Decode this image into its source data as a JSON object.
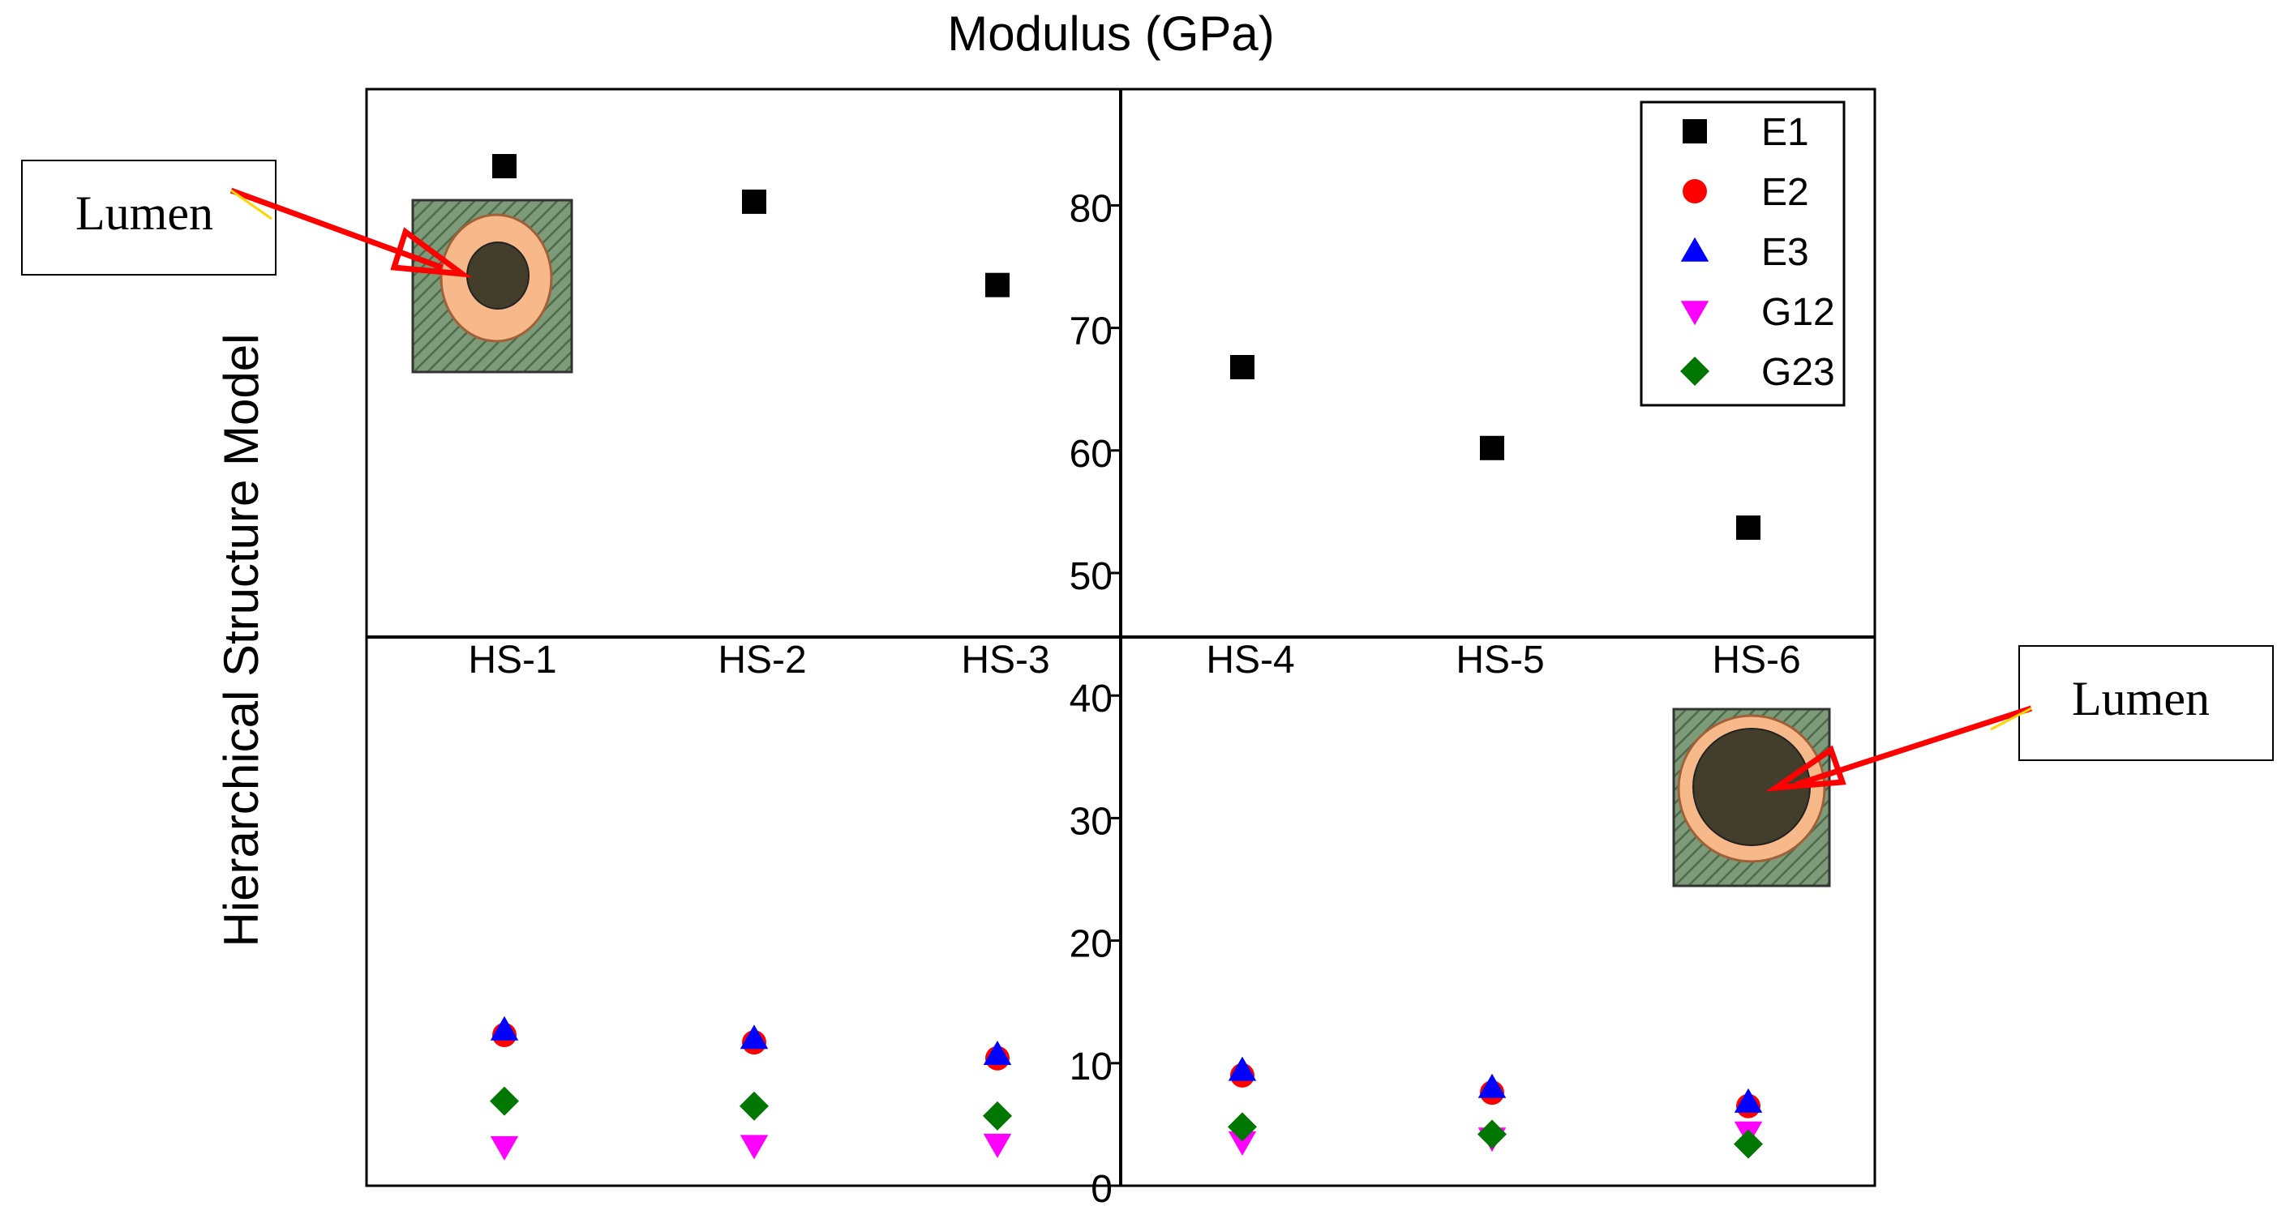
{
  "chart_data": {
    "type": "scatter",
    "title": "Modulus (GPa)",
    "xlabel": "",
    "ylabel": "Hierarchical Structure Model",
    "categories": [
      "HS-1",
      "HS-2",
      "HS-3",
      "HS-4",
      "HS-5",
      "HS-6"
    ],
    "ylim": [
      0,
      90
    ],
    "yticks": [
      0,
      10,
      20,
      30,
      40,
      50,
      60,
      70,
      80
    ],
    "grid": false,
    "legend_position": "top-right",
    "series": [
      {
        "name": "E1",
        "marker": "square",
        "color": "#000000",
        "values": [
          83.2,
          80.3,
          73.5,
          66.8,
          60.2,
          53.7
        ]
      },
      {
        "name": "E2",
        "marker": "circle",
        "color": "#ff0000",
        "values": [
          12.3,
          11.7,
          10.4,
          9.0,
          7.6,
          6.5
        ]
      },
      {
        "name": "E3",
        "marker": "triangle-up",
        "color": "#0000ff",
        "values": [
          12.7,
          12.0,
          10.7,
          9.4,
          8.0,
          6.8
        ]
      },
      {
        "name": "G12",
        "marker": "triangle-down",
        "color": "#ff00ff",
        "values": [
          3.2,
          3.3,
          3.4,
          3.6,
          3.9,
          4.4
        ]
      },
      {
        "name": "G23",
        "marker": "diamond",
        "color": "#007700",
        "values": [
          6.9,
          6.5,
          5.7,
          4.8,
          4.2,
          3.4
        ]
      }
    ],
    "annotations": [
      {
        "text": "Lumen",
        "target": "HS-1 cross-section"
      },
      {
        "text": "Lumen",
        "target": "HS-6 cross-section"
      }
    ]
  },
  "colors": {
    "fiber_wall": "#f7b98a",
    "lumen_core": "#433d2c",
    "matrix": "#6e8f6a",
    "arrow": "#ff0000"
  }
}
